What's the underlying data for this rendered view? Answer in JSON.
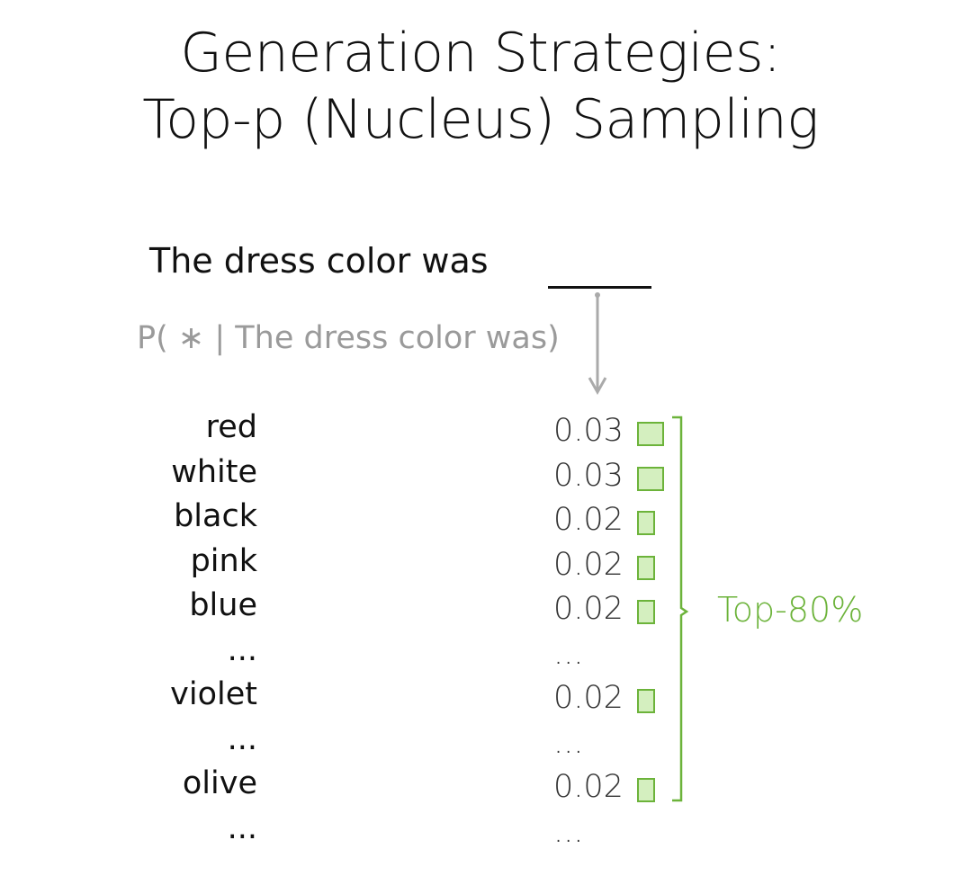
{
  "title": {
    "line1": "Generation Strategies:",
    "line2": "Top-p (Nucleus) Sampling"
  },
  "prompt": {
    "text": "The dress color was"
  },
  "conditional": {
    "prefix": "P( ",
    "star": "∗",
    "bar": " | ",
    "context": "The dress color was",
    "suffix": ")"
  },
  "tokens": [
    {
      "word": "red",
      "prob": "0.03",
      "value": 0.03
    },
    {
      "word": "white",
      "prob": "0.03",
      "value": 0.03
    },
    {
      "word": "black",
      "prob": "0.02",
      "value": 0.02
    },
    {
      "word": "pink",
      "prob": "0.02",
      "value": 0.02
    },
    {
      "word": "blue",
      "prob": "0.02",
      "value": 0.02
    },
    {
      "word": "...",
      "prob": "...",
      "value": null
    },
    {
      "word": "violet",
      "prob": "0.02",
      "value": 0.02
    },
    {
      "word": "...",
      "prob": "...",
      "value": null
    },
    {
      "word": "olive",
      "prob": "0.02",
      "value": 0.02
    },
    {
      "word": "...",
      "prob": "...",
      "value": null
    }
  ],
  "selection": {
    "label": "Top-80%"
  },
  "colors": {
    "accent": "#6cb33a",
    "bar_fill": "#d4efbf",
    "muted": "#9a9a9a"
  }
}
